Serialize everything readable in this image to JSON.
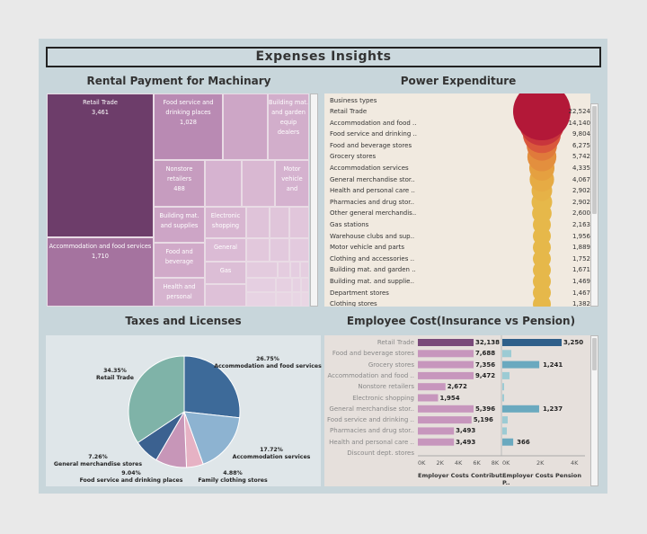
{
  "dashboard_title": "Expenses  Insights",
  "rental": {
    "title": "Rental Payment for Machinary",
    "tiles": [
      {
        "label": "Retail Trade",
        "value": "3,461"
      },
      {
        "label": "Accommodation and food services",
        "value": "1,710"
      },
      {
        "label": "Food service and drinking places",
        "value": "1,028"
      },
      {
        "label": "Building mat. and garden equip dealers",
        "value": ""
      },
      {
        "label": "Nonstore retailers",
        "value": "488"
      },
      {
        "label": "Motor vehicle and",
        "value": ""
      },
      {
        "label": "Building mat. and supplies",
        "value": ""
      },
      {
        "label": "Electronic shopping",
        "value": ""
      },
      {
        "label": "Food and beverage",
        "value": ""
      },
      {
        "label": "General",
        "value": ""
      },
      {
        "label": "Gas",
        "value": ""
      },
      {
        "label": "Health and personal",
        "value": ""
      }
    ]
  },
  "power": {
    "title": "Power Expenditure",
    "header": "Business types",
    "rows": [
      {
        "name": "Retail Trade",
        "value": "22,524",
        "num": 22524
      },
      {
        "name": "Accommodation and food ..",
        "value": "14,140",
        "num": 14140
      },
      {
        "name": "Food service and drinking ..",
        "value": "9,804",
        "num": 9804
      },
      {
        "name": "Food and beverage stores",
        "value": "6,275",
        "num": 6275
      },
      {
        "name": "Grocery stores",
        "value": "5,742",
        "num": 5742
      },
      {
        "name": "Accommodation services",
        "value": "4,335",
        "num": 4335
      },
      {
        "name": "General merchandise stor..",
        "value": "4,067",
        "num": 4067
      },
      {
        "name": "Health and personal care ..",
        "value": "2,902",
        "num": 2902
      },
      {
        "name": "Pharmacies and drug stor..",
        "value": "2,902",
        "num": 2902
      },
      {
        "name": "Other general merchandis..",
        "value": "2,600",
        "num": 2600
      },
      {
        "name": "Gas stations",
        "value": "2,163",
        "num": 2163
      },
      {
        "name": "Warehouse clubs and sup..",
        "value": "1,956",
        "num": 1956
      },
      {
        "name": "Motor vehicle and parts",
        "value": "1,889",
        "num": 1889
      },
      {
        "name": "Clothing and accessories ..",
        "value": "1,752",
        "num": 1752
      },
      {
        "name": "Building mat. and garden ..",
        "value": "1,671",
        "num": 1671
      },
      {
        "name": "Building mat. and supplie..",
        "value": "1,469",
        "num": 1469
      },
      {
        "name": "Department stores",
        "value": "1,467",
        "num": 1467
      },
      {
        "name": "Clothing stores",
        "value": "1,382",
        "num": 1382
      }
    ]
  },
  "taxes": {
    "title": "Taxes and Licenses",
    "labels": [
      {
        "pct": "26.75%",
        "name": "Accommodation and food services"
      },
      {
        "pct": "17.72%",
        "name": "Accommodation services"
      },
      {
        "pct": "4.88%",
        "name": "Family clothing stores"
      },
      {
        "pct": "9.04%",
        "name": "Food service and drinking places"
      },
      {
        "pct": "7.26%",
        "name": "General merchandise stores"
      },
      {
        "pct": "34.35%",
        "name": "Retail Trade"
      }
    ]
  },
  "employee": {
    "title": "Employee  Cost(Insurance vs Pension)",
    "rows": [
      {
        "name": "Retail Trade",
        "ins": "32,138",
        "pen": "3,250"
      },
      {
        "name": "Food and beverage stores",
        "ins": "7,688",
        "pen": ""
      },
      {
        "name": "Grocery stores",
        "ins": "7,356",
        "pen": "1,241"
      },
      {
        "name": "Accommodation and food ..",
        "ins": "9,472",
        "pen": ""
      },
      {
        "name": "Nonstore retailers",
        "ins": "2,672",
        "pen": ""
      },
      {
        "name": "Electronic shopping",
        "ins": "1,954",
        "pen": ""
      },
      {
        "name": "General merchandise stor..",
        "ins": "5,396",
        "pen": "1,237"
      },
      {
        "name": "Food service and drinking ..",
        "ins": "5,196",
        "pen": ""
      },
      {
        "name": "Pharmacies and drug stor..",
        "ins": "3,493",
        "pen": ""
      },
      {
        "name": "Health and personal care ..",
        "ins": "3,493",
        "pen": "366"
      },
      {
        "name": "Discount dept. stores",
        "ins": "",
        "pen": ""
      }
    ],
    "ins_ticks": [
      "0K",
      "2K",
      "4K",
      "6K",
      "8K"
    ],
    "pen_ticks": [
      "0K",
      "2K",
      "4K"
    ],
    "ins_axis": "Employer Costs Contribut..",
    "pen_axis": "Employer Costs Pension P.."
  },
  "chart_data": [
    {
      "type": "treemap",
      "title": "Rental Payment for Machinary",
      "categories": [
        "Retail Trade",
        "Accommodation and food services",
        "Food service and drinking places",
        "Nonstore retailers"
      ],
      "values": [
        3461,
        1710,
        1028,
        488
      ]
    },
    {
      "type": "bubble",
      "title": "Power Expenditure",
      "categories": [
        "Retail Trade",
        "Accommodation and food ..",
        "Food service and drinking ..",
        "Food and beverage stores",
        "Grocery stores",
        "Accommodation services",
        "General merchandise stor..",
        "Health and personal care ..",
        "Pharmacies and drug stor..",
        "Other general merchandis..",
        "Gas stations",
        "Warehouse clubs and sup..",
        "Motor vehicle and parts",
        "Clothing and accessories ..",
        "Building mat. and garden ..",
        "Building mat. and supplie..",
        "Department stores",
        "Clothing stores"
      ],
      "values": [
        22524,
        14140,
        9804,
        6275,
        5742,
        4335,
        4067,
        2902,
        2902,
        2600,
        2163,
        1956,
        1889,
        1752,
        1671,
        1469,
        1467,
        1382
      ]
    },
    {
      "type": "pie",
      "title": "Taxes and Licenses",
      "categories": [
        "Accommodation and food services",
        "Accommodation services",
        "Family clothing stores",
        "Food service and drinking places",
        "General merchandise stores",
        "Retail Trade"
      ],
      "values": [
        26.75,
        17.72,
        4.88,
        9.04,
        7.26,
        34.35
      ],
      "colors": [
        "#3d6a99",
        "#8db3d1",
        "#e6b2c4",
        "#c796b8",
        "#3b6190",
        "#7fb3a8"
      ]
    },
    {
      "type": "bar",
      "title": "Employee  Cost(Insurance vs Pension)",
      "categories": [
        "Retail Trade",
        "Food and beverage stores",
        "Grocery stores",
        "Accommodation and food ..",
        "Nonstore retailers",
        "Electronic shopping",
        "General merchandise stor..",
        "Food service and drinking ..",
        "Pharmacies and drug stor..",
        "Health and personal care .."
      ],
      "series": [
        {
          "name": "Employer Costs Contribut..",
          "values": [
            32138,
            7688,
            7356,
            9472,
            2672,
            1954,
            5396,
            5196,
            3493,
            3493
          ]
        },
        {
          "name": "Employer Costs Pension P..",
          "values": [
            3250,
            null,
            1241,
            null,
            null,
            null,
            1237,
            null,
            null,
            366
          ]
        }
      ]
    }
  ]
}
